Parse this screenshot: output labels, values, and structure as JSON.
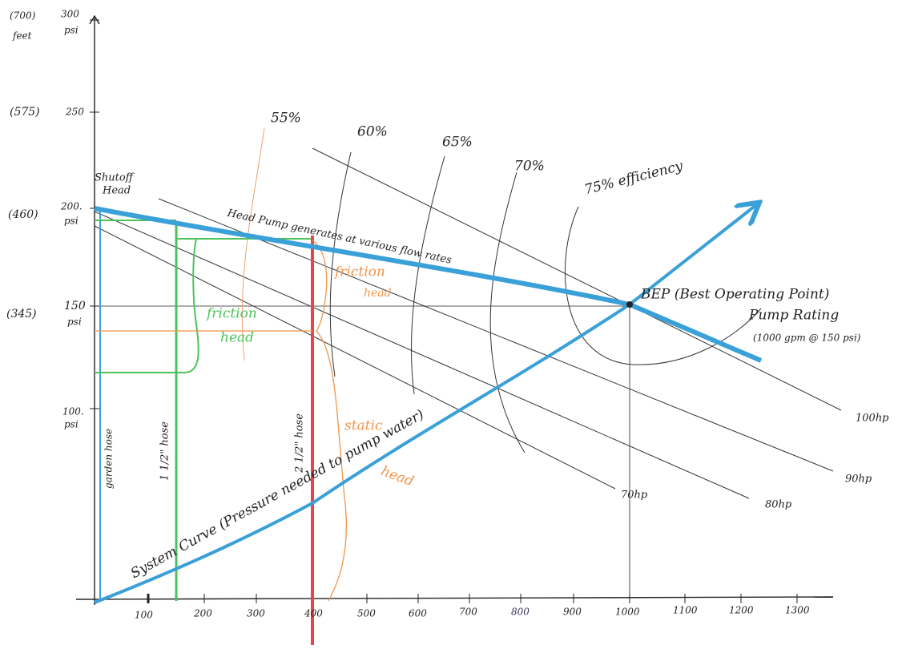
{
  "y_axis": {
    "labels": [
      {
        "feet": "(700)",
        "psi": "300",
        "unit": "feet",
        "psi_unit": "psi"
      },
      {
        "feet": "(575)",
        "psi": "250"
      },
      {
        "feet": "(460)",
        "psi": "200.",
        "psi_unit": "psi"
      },
      {
        "feet": "(345)",
        "psi": "150",
        "psi_unit": "psi"
      },
      {
        "psi": "100.",
        "psi_unit": "psi"
      }
    ]
  },
  "x_axis": {
    "labels": [
      "100",
      "200",
      "300",
      "400",
      "500",
      "600",
      "700",
      "800",
      "900",
      "1000",
      "1100",
      "1200",
      "1300"
    ]
  },
  "annotations": {
    "shutoff_head": [
      "Shutoff",
      "Head"
    ],
    "pump_curve": "Head Pump generates at various flow rates",
    "friction_head_orange": [
      "friction",
      "head"
    ],
    "friction_head_green": [
      "friction",
      "head"
    ],
    "static_head": [
      "static",
      "head"
    ],
    "garden_hose": "garden hose",
    "hose_1_5": "1 1/2\" hose",
    "hose_2_5": "2 1/2\" hose",
    "system_curve": "System Curve (Pressure needed to pump water)",
    "bep": "BEP (Best Operating Point)",
    "pump_rating": "Pump Rating",
    "pump_rating_detail": "(1000 gpm @ 150 psi)"
  },
  "efficiency": [
    "55%",
    "60%",
    "65%",
    "70%",
    "75% efficiency"
  ],
  "horsepower": [
    "70hp",
    "80hp",
    "90hp",
    "100hp"
  ]
}
